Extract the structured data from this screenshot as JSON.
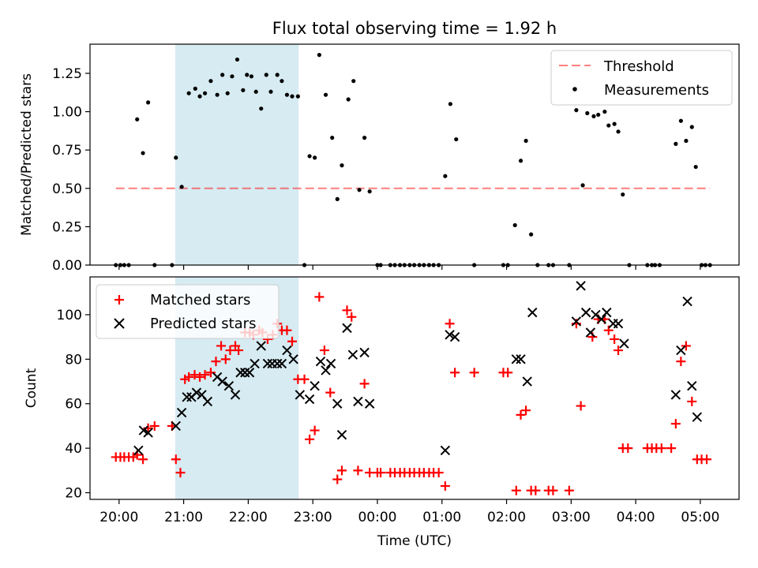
{
  "chart_data": [
    {
      "type": "scatter",
      "title": "Flux total observing time = 1.92 h",
      "ylabel": "Matched/Predicted stars",
      "ylim": [
        0,
        1.44
      ],
      "yticks": [
        0.0,
        0.25,
        0.5,
        0.75,
        1.0,
        1.25
      ],
      "yticklabels": [
        "0.00",
        "0.25",
        "0.50",
        "0.75",
        "1.00",
        "1.25"
      ],
      "xlim_hours": [
        19.55,
        29.6
      ],
      "shaded_band_hours": [
        20.87,
        22.78
      ],
      "shaded_band_color": "#add8e6",
      "legend_position": "upper right",
      "threshold": {
        "name": "Threshold",
        "value": 0.5,
        "x_range_hours": [
          19.95,
          29.15
        ],
        "color": "#ff0000",
        "style": "dashed"
      },
      "series": [
        {
          "name": "Measurements",
          "marker": "dot",
          "color": "#000000",
          "points": [
            [
              19.95,
              0.0
            ],
            [
              20.02,
              0.0
            ],
            [
              20.08,
              0.0
            ],
            [
              20.15,
              0.0
            ],
            [
              20.28,
              0.95
            ],
            [
              20.37,
              0.73
            ],
            [
              20.45,
              1.06
            ],
            [
              20.55,
              0.0
            ],
            [
              20.82,
              0.0
            ],
            [
              20.88,
              0.7
            ],
            [
              20.97,
              0.51
            ],
            [
              21.08,
              1.12
            ],
            [
              21.18,
              1.15
            ],
            [
              21.25,
              1.1
            ],
            [
              21.33,
              1.12
            ],
            [
              21.42,
              1.2
            ],
            [
              21.52,
              1.11
            ],
            [
              21.6,
              1.24
            ],
            [
              21.68,
              1.12
            ],
            [
              21.75,
              1.23
            ],
            [
              21.83,
              1.34
            ],
            [
              21.92,
              1.14
            ],
            [
              21.98,
              1.24
            ],
            [
              22.05,
              1.23
            ],
            [
              22.12,
              1.13
            ],
            [
              22.2,
              1.02
            ],
            [
              22.28,
              1.24
            ],
            [
              22.35,
              1.13
            ],
            [
              22.45,
              1.24
            ],
            [
              22.52,
              1.2
            ],
            [
              22.6,
              1.11
            ],
            [
              22.68,
              1.1
            ],
            [
              22.77,
              1.1
            ],
            [
              22.87,
              0.0
            ],
            [
              22.95,
              0.71
            ],
            [
              23.03,
              0.7
            ],
            [
              23.1,
              1.37
            ],
            [
              23.2,
              1.11
            ],
            [
              23.3,
              0.83
            ],
            [
              23.38,
              0.43
            ],
            [
              23.45,
              0.65
            ],
            [
              23.55,
              1.08
            ],
            [
              23.63,
              1.2
            ],
            [
              23.72,
              0.49
            ],
            [
              23.8,
              0.83
            ],
            [
              23.88,
              0.48
            ],
            [
              24.0,
              0.0
            ],
            [
              24.05,
              0.0
            ],
            [
              24.2,
              0.0
            ],
            [
              24.27,
              0.0
            ],
            [
              24.35,
              0.0
            ],
            [
              24.42,
              0.0
            ],
            [
              24.5,
              0.0
            ],
            [
              24.57,
              0.0
            ],
            [
              24.65,
              0.0
            ],
            [
              24.72,
              0.0
            ],
            [
              24.8,
              0.0
            ],
            [
              24.87,
              0.0
            ],
            [
              24.95,
              0.0
            ],
            [
              25.05,
              0.58
            ],
            [
              25.13,
              1.05
            ],
            [
              25.22,
              0.82
            ],
            [
              25.5,
              0.0
            ],
            [
              25.95,
              0.0
            ],
            [
              26.02,
              0.0
            ],
            [
              26.13,
              0.26
            ],
            [
              26.22,
              0.68
            ],
            [
              26.3,
              0.81
            ],
            [
              26.38,
              0.2
            ],
            [
              26.48,
              0.0
            ],
            [
              26.65,
              0.0
            ],
            [
              26.72,
              0.0
            ],
            [
              26.97,
              0.0
            ],
            [
              27.08,
              1.01
            ],
            [
              27.18,
              0.52
            ],
            [
              27.25,
              0.99
            ],
            [
              27.35,
              0.97
            ],
            [
              27.42,
              0.98
            ],
            [
              27.52,
              1.0
            ],
            [
              27.58,
              0.91
            ],
            [
              27.67,
              0.92
            ],
            [
              27.73,
              0.87
            ],
            [
              27.8,
              0.46
            ],
            [
              27.9,
              0.0
            ],
            [
              28.18,
              0.0
            ],
            [
              28.25,
              0.0
            ],
            [
              28.3,
              0.0
            ],
            [
              28.37,
              0.0
            ],
            [
              28.62,
              0.79
            ],
            [
              28.7,
              0.94
            ],
            [
              28.78,
              0.81
            ],
            [
              28.87,
              0.9
            ],
            [
              28.93,
              0.64
            ],
            [
              29.02,
              0.0
            ],
            [
              29.08,
              0.0
            ],
            [
              29.15,
              0.0
            ]
          ]
        }
      ]
    },
    {
      "type": "scatter",
      "xlabel": "Time (UTC)",
      "ylabel": "Count",
      "ylim": [
        17,
        117
      ],
      "yticks": [
        20,
        40,
        60,
        80,
        100
      ],
      "xlim_hours": [
        19.55,
        29.6
      ],
      "xticks_hours": [
        20,
        21,
        22,
        23,
        24,
        25,
        26,
        27,
        28,
        29
      ],
      "xticklabels": [
        "20:00",
        "21:00",
        "22:00",
        "23:00",
        "00:00",
        "01:00",
        "02:00",
        "03:00",
        "04:00",
        "05:00"
      ],
      "shaded_band_hours": [
        20.87,
        22.78
      ],
      "shaded_band_color": "#add8e6",
      "legend_position": "upper left",
      "series": [
        {
          "name": "Matched stars",
          "marker": "plus",
          "color": "#ff0000",
          "points": [
            [
              19.95,
              36
            ],
            [
              20.02,
              36
            ],
            [
              20.08,
              36
            ],
            [
              20.15,
              36
            ],
            [
              20.22,
              36
            ],
            [
              20.28,
              37
            ],
            [
              20.37,
              35
            ],
            [
              20.45,
              49
            ],
            [
              20.55,
              50
            ],
            [
              20.82,
              50
            ],
            [
              20.88,
              35
            ],
            [
              20.95,
              29
            ],
            [
              21.02,
              71
            ],
            [
              21.08,
              72
            ],
            [
              21.17,
              73
            ],
            [
              21.25,
              72
            ],
            [
              21.33,
              73
            ],
            [
              21.42,
              74
            ],
            [
              21.5,
              79
            ],
            [
              21.58,
              86
            ],
            [
              21.65,
              80
            ],
            [
              21.72,
              84
            ],
            [
              21.8,
              86
            ],
            [
              21.85,
              84
            ],
            [
              21.95,
              92
            ],
            [
              22.02,
              92
            ],
            [
              22.08,
              91
            ],
            [
              22.17,
              93
            ],
            [
              22.22,
              92
            ],
            [
              22.3,
              89
            ],
            [
              22.38,
              91
            ],
            [
              22.45,
              96
            ],
            [
              22.52,
              93
            ],
            [
              22.6,
              93
            ],
            [
              22.68,
              88
            ],
            [
              22.77,
              71
            ],
            [
              22.87,
              71
            ],
            [
              22.95,
              44
            ],
            [
              23.03,
              48
            ],
            [
              23.1,
              108
            ],
            [
              23.18,
              84
            ],
            [
              23.27,
              65
            ],
            [
              23.38,
              26
            ],
            [
              23.45,
              30
            ],
            [
              23.53,
              102
            ],
            [
              23.6,
              99
            ],
            [
              23.7,
              30
            ],
            [
              23.8,
              69
            ],
            [
              23.88,
              29
            ],
            [
              24.0,
              29
            ],
            [
              24.05,
              29
            ],
            [
              24.2,
              29
            ],
            [
              24.27,
              29
            ],
            [
              24.35,
              29
            ],
            [
              24.42,
              29
            ],
            [
              24.5,
              29
            ],
            [
              24.57,
              29
            ],
            [
              24.65,
              29
            ],
            [
              24.72,
              29
            ],
            [
              24.8,
              29
            ],
            [
              24.87,
              29
            ],
            [
              24.95,
              29
            ],
            [
              25.05,
              23
            ],
            [
              25.12,
              96
            ],
            [
              25.2,
              74
            ],
            [
              25.5,
              74
            ],
            [
              25.95,
              74
            ],
            [
              26.02,
              74
            ],
            [
              26.15,
              21
            ],
            [
              26.22,
              55
            ],
            [
              26.3,
              57
            ],
            [
              26.38,
              21
            ],
            [
              26.45,
              21
            ],
            [
              26.65,
              21
            ],
            [
              26.72,
              21
            ],
            [
              26.97,
              21
            ],
            [
              27.08,
              96
            ],
            [
              27.15,
              59
            ],
            [
              27.33,
              90
            ],
            [
              27.42,
              98
            ],
            [
              27.52,
              98
            ],
            [
              27.58,
              93
            ],
            [
              27.67,
              89
            ],
            [
              27.73,
              84
            ],
            [
              27.8,
              40
            ],
            [
              27.88,
              40
            ],
            [
              28.18,
              40
            ],
            [
              28.25,
              40
            ],
            [
              28.32,
              40
            ],
            [
              28.4,
              40
            ],
            [
              28.55,
              40
            ],
            [
              28.62,
              51
            ],
            [
              28.7,
              79
            ],
            [
              28.78,
              86
            ],
            [
              28.87,
              61
            ],
            [
              28.95,
              35
            ],
            [
              29.02,
              35
            ],
            [
              29.1,
              35
            ]
          ]
        },
        {
          "name": "Predicted stars",
          "marker": "x",
          "color": "#000000",
          "points": [
            [
              20.3,
              39
            ],
            [
              20.38,
              48
            ],
            [
              20.45,
              47
            ],
            [
              20.88,
              50
            ],
            [
              20.97,
              56
            ],
            [
              21.05,
              63
            ],
            [
              21.12,
              63
            ],
            [
              21.2,
              65
            ],
            [
              21.28,
              64
            ],
            [
              21.37,
              61
            ],
            [
              21.52,
              72
            ],
            [
              21.6,
              70
            ],
            [
              21.7,
              68
            ],
            [
              21.8,
              64
            ],
            [
              21.88,
              74
            ],
            [
              21.95,
              74
            ],
            [
              22.02,
              74
            ],
            [
              22.1,
              78
            ],
            [
              22.2,
              86
            ],
            [
              22.3,
              78
            ],
            [
              22.37,
              78
            ],
            [
              22.45,
              78
            ],
            [
              22.52,
              78
            ],
            [
              22.6,
              84
            ],
            [
              22.7,
              80
            ],
            [
              22.8,
              64
            ],
            [
              22.95,
              62
            ],
            [
              23.03,
              68
            ],
            [
              23.12,
              79
            ],
            [
              23.2,
              75
            ],
            [
              23.28,
              78
            ],
            [
              23.38,
              60
            ],
            [
              23.45,
              46
            ],
            [
              23.53,
              94
            ],
            [
              23.62,
              82
            ],
            [
              23.7,
              61
            ],
            [
              23.8,
              83
            ],
            [
              23.88,
              60
            ],
            [
              25.05,
              39
            ],
            [
              25.12,
              91
            ],
            [
              25.2,
              90
            ],
            [
              26.15,
              80
            ],
            [
              26.22,
              80
            ],
            [
              26.32,
              70
            ],
            [
              26.4,
              101
            ],
            [
              27.08,
              97
            ],
            [
              27.15,
              113
            ],
            [
              27.23,
              101
            ],
            [
              27.3,
              92
            ],
            [
              27.38,
              100
            ],
            [
              27.47,
              98
            ],
            [
              27.55,
              101
            ],
            [
              27.65,
              96
            ],
            [
              27.73,
              96
            ],
            [
              27.82,
              87
            ],
            [
              28.62,
              64
            ],
            [
              28.7,
              84
            ],
            [
              28.8,
              106
            ],
            [
              28.87,
              68
            ],
            [
              28.95,
              54
            ]
          ]
        }
      ]
    }
  ]
}
